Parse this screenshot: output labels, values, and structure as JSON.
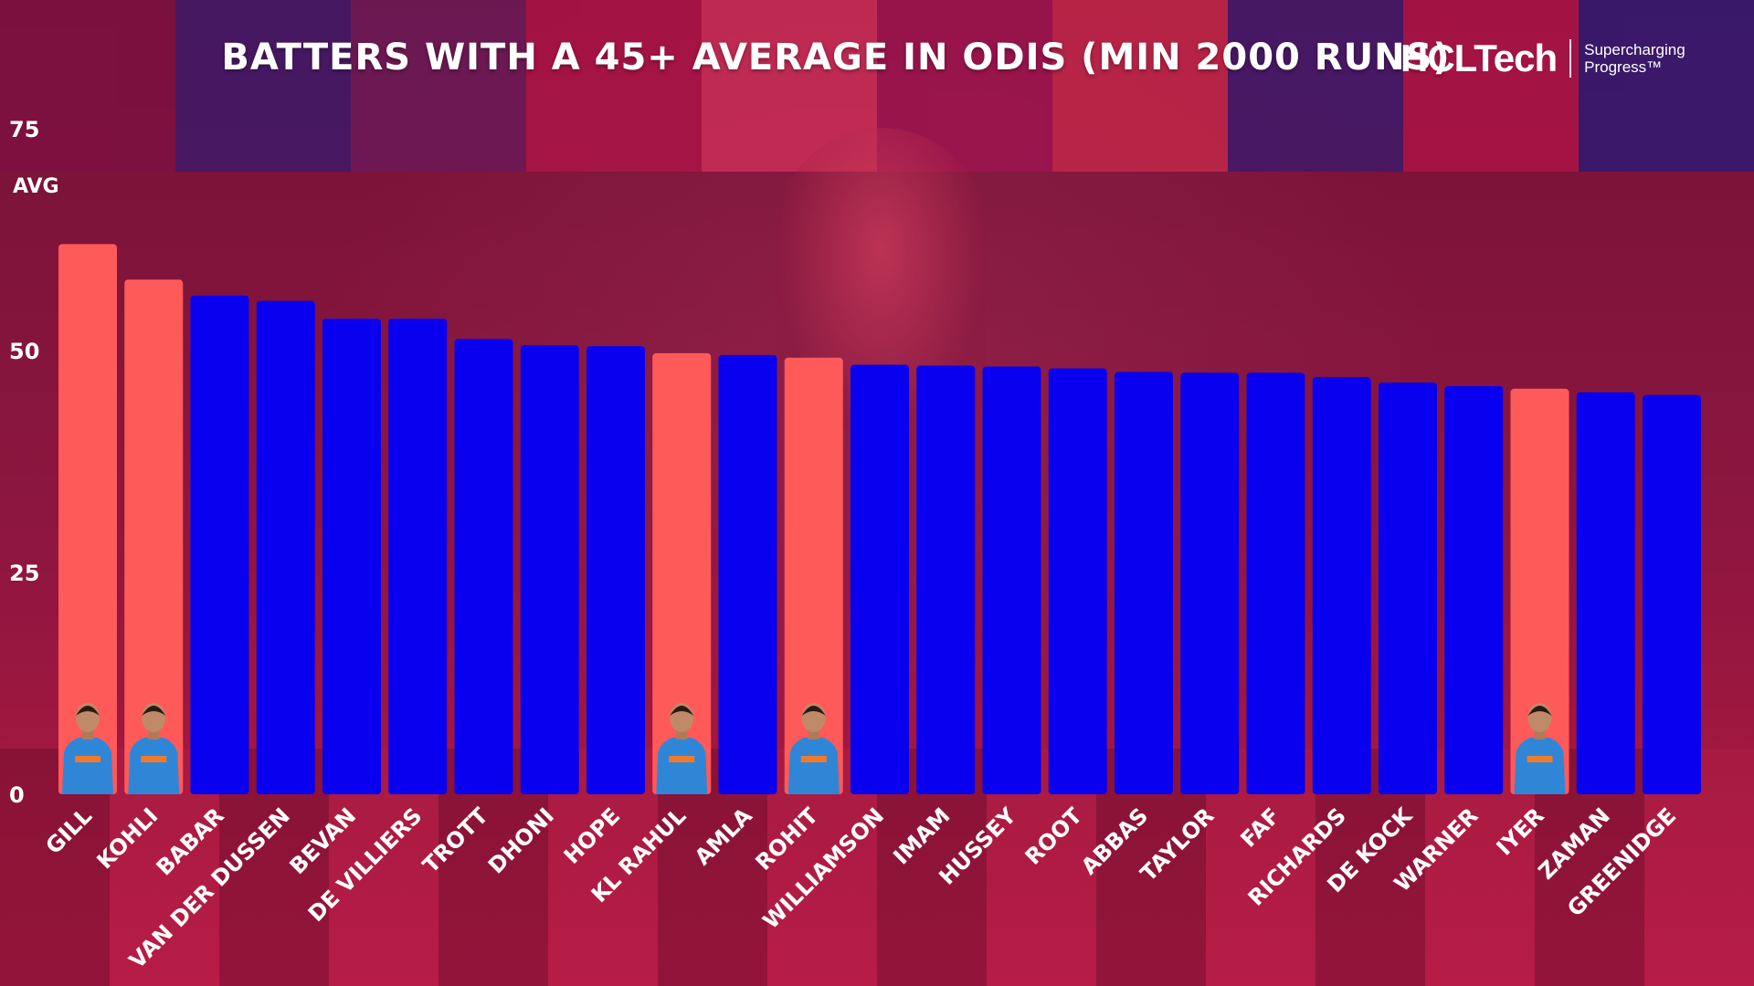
{
  "header": {
    "title": "BATTERS WITH A 45+ AVERAGE IN ODIS (MIN 2000 RUNS)"
  },
  "brand": {
    "name": "HCLTech",
    "tagline_line1": "Supercharging",
    "tagline_line2": "Progress™"
  },
  "colors": {
    "india_highlight": "#ff5a5a",
    "other": "#0a00f0",
    "background": "#8e1640"
  },
  "chart_data": {
    "type": "bar",
    "title": "BATTERS WITH A 45+ AVERAGE IN ODIS (MIN 2000 RUNS)",
    "ylabel": "AVG",
    "xlabel": "",
    "ylim": [
      0,
      75
    ],
    "yticks": [
      0,
      25,
      50,
      75
    ],
    "grid": false,
    "legend": "none",
    "categories": [
      "GILL",
      "KOHLI",
      "BABAR",
      "VAN DER DUSSEN",
      "BEVAN",
      "DE VILLIERS",
      "TROTT",
      "DHONI",
      "HOPE",
      "KL RAHUL",
      "AMLA",
      "ROHIT",
      "WILLIAMSON",
      "IMAM",
      "HUSSEY",
      "ROOT",
      "ABBAS",
      "TAYLOR",
      "FAF",
      "RICHARDS",
      "DE KOCK",
      "WARNER",
      "IYER",
      "ZAMAN",
      "GREENIDGE"
    ],
    "values": [
      62.0,
      58.0,
      56.2,
      55.6,
      53.6,
      53.6,
      51.3,
      50.6,
      50.5,
      49.7,
      49.5,
      49.2,
      48.4,
      48.3,
      48.2,
      48.0,
      47.6,
      47.5,
      47.5,
      47.0,
      46.4,
      46.0,
      45.7,
      45.3,
      45.0
    ],
    "highlighted": [
      "GILL",
      "KOHLI",
      "KL RAHUL",
      "ROHIT",
      "IYER"
    ]
  }
}
